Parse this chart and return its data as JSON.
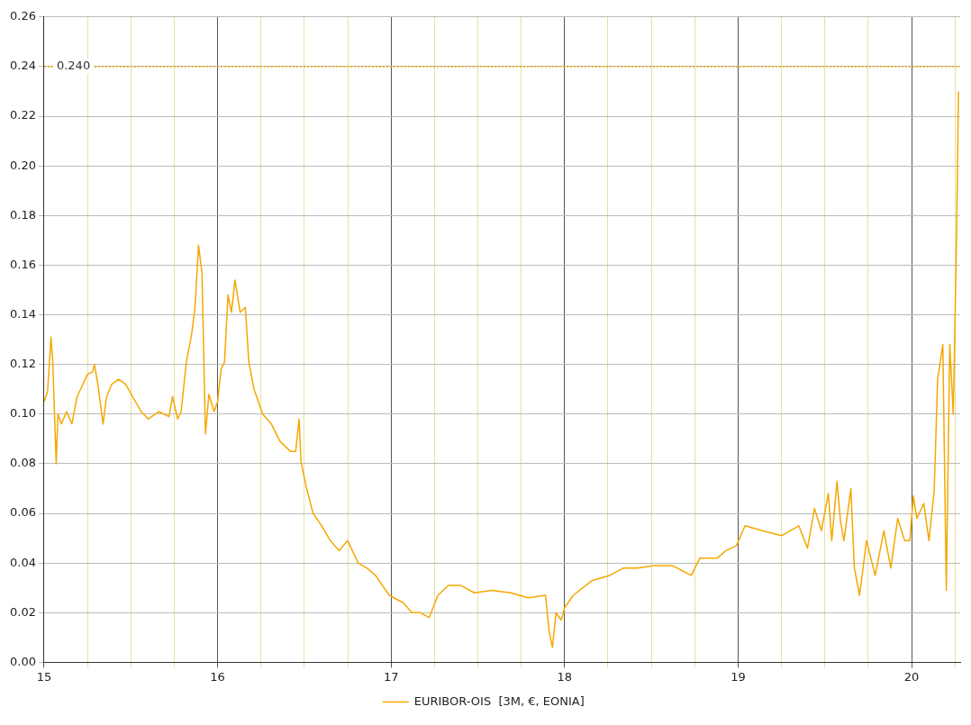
{
  "chart_data": {
    "type": "line",
    "x": [
      15.0,
      15.02,
      15.04,
      15.05,
      15.07,
      15.08,
      15.1,
      15.13,
      15.16,
      15.19,
      15.21,
      15.25,
      15.28,
      15.29,
      15.31,
      15.34,
      15.36,
      15.39,
      15.43,
      15.47,
      15.51,
      15.56,
      15.6,
      15.66,
      15.72,
      15.74,
      15.77,
      15.79,
      15.82,
      15.85,
      15.87,
      15.89,
      15.91,
      15.93,
      15.95,
      15.98,
      16.0,
      16.02,
      16.04,
      16.06,
      16.08,
      16.1,
      16.13,
      16.16,
      16.18,
      16.21,
      16.26,
      16.31,
      16.36,
      16.42,
      16.45,
      16.47,
      16.48,
      16.51,
      16.55,
      16.6,
      16.65,
      16.7,
      16.75,
      16.81,
      16.86,
      16.91,
      16.99,
      17.07,
      17.12,
      17.17,
      17.22,
      17.27,
      17.33,
      17.4,
      17.48,
      17.58,
      17.69,
      17.79,
      17.89,
      17.91,
      17.93,
      17.95,
      17.98,
      18.0,
      18.05,
      18.16,
      18.26,
      18.34,
      18.42,
      18.52,
      18.62,
      18.73,
      18.78,
      18.88,
      18.93,
      18.99,
      19.04,
      19.14,
      19.25,
      19.35,
      19.4,
      19.44,
      19.48,
      19.52,
      19.54,
      19.57,
      19.59,
      19.61,
      19.65,
      19.67,
      19.7,
      19.74,
      19.79,
      19.84,
      19.88,
      19.92,
      19.96,
      19.99,
      20.01,
      20.03,
      20.07,
      20.1,
      20.13,
      20.15,
      20.18,
      20.2,
      20.22,
      20.24,
      20.26,
      20.27
    ],
    "series": [
      {
        "name": "EURIBOR-OIS  [3M, €, EONIA]",
        "color": "#f5a800",
        "values": [
          0.105,
          0.109,
          0.131,
          0.121,
          0.08,
          0.1,
          0.096,
          0.101,
          0.096,
          0.107,
          0.11,
          0.116,
          0.117,
          0.12,
          0.112,
          0.096,
          0.107,
          0.112,
          0.114,
          0.112,
          0.107,
          0.101,
          0.098,
          0.101,
          0.099,
          0.107,
          0.098,
          0.101,
          0.121,
          0.132,
          0.143,
          0.168,
          0.157,
          0.092,
          0.108,
          0.101,
          0.105,
          0.118,
          0.121,
          0.148,
          0.141,
          0.154,
          0.141,
          0.143,
          0.121,
          0.11,
          0.1,
          0.096,
          0.089,
          0.085,
          0.085,
          0.098,
          0.081,
          0.071,
          0.06,
          0.055,
          0.049,
          0.045,
          0.049,
          0.04,
          0.038,
          0.035,
          0.027,
          0.024,
          0.02,
          0.02,
          0.018,
          0.027,
          0.031,
          0.031,
          0.028,
          0.029,
          0.028,
          0.026,
          0.027,
          0.013,
          0.006,
          0.02,
          0.017,
          0.022,
          0.027,
          0.033,
          0.035,
          0.038,
          0.038,
          0.039,
          0.039,
          0.035,
          0.042,
          0.042,
          0.045,
          0.047,
          0.055,
          0.053,
          0.051,
          0.055,
          0.046,
          0.062,
          0.053,
          0.068,
          0.049,
          0.073,
          0.057,
          0.049,
          0.07,
          0.038,
          0.027,
          0.049,
          0.035,
          0.053,
          0.038,
          0.058,
          0.049,
          0.049,
          0.067,
          0.058,
          0.064,
          0.049,
          0.069,
          0.114,
          0.128,
          0.029,
          0.128,
          0.1,
          0.175,
          0.23
        ]
      }
    ],
    "xlim": [
      15,
      20.28
    ],
    "xticks": [
      15,
      {
        "value": 15.25,
        "label": null
      },
      {
        "value": 15.5,
        "label": null
      },
      {
        "value": 15.75,
        "label": null
      },
      16,
      {
        "value": 16.25,
        "label": null
      },
      {
        "value": 16.5,
        "label": null
      },
      {
        "value": 16.75,
        "label": null
      },
      17,
      {
        "value": 17.25,
        "label": null
      },
      {
        "value": 17.5,
        "label": null
      },
      {
        "value": 17.75,
        "label": null
      },
      18,
      {
        "value": 18.25,
        "label": null
      },
      {
        "value": 18.5,
        "label": null
      },
      {
        "value": 18.75,
        "label": null
      },
      19,
      {
        "value": 19.25,
        "label": null
      },
      {
        "value": 19.5,
        "label": null
      },
      {
        "value": 19.75,
        "label": null
      },
      20,
      {
        "value": 20.25,
        "label": null
      }
    ],
    "ylim": [
      0,
      0.26
    ],
    "yticks": [
      {
        "value": 0,
        "label": "0.00"
      },
      0.02,
      0.04,
      0.06,
      0.08,
      {
        "value": 0.1,
        "label": "0.10"
      },
      0.12,
      0.14,
      0.16,
      0.18,
      {
        "value": 0.2,
        "label": "0.20"
      },
      0.22,
      0.24,
      0.26
    ],
    "ref_lines": [
      {
        "axis": "y",
        "value": 0.24,
        "label": "0.240",
        "color": "#f0a800",
        "line_style": "dotted"
      }
    ],
    "grid": true,
    "legend": "bottom",
    "marker": "none",
    "line_style": "solid"
  }
}
